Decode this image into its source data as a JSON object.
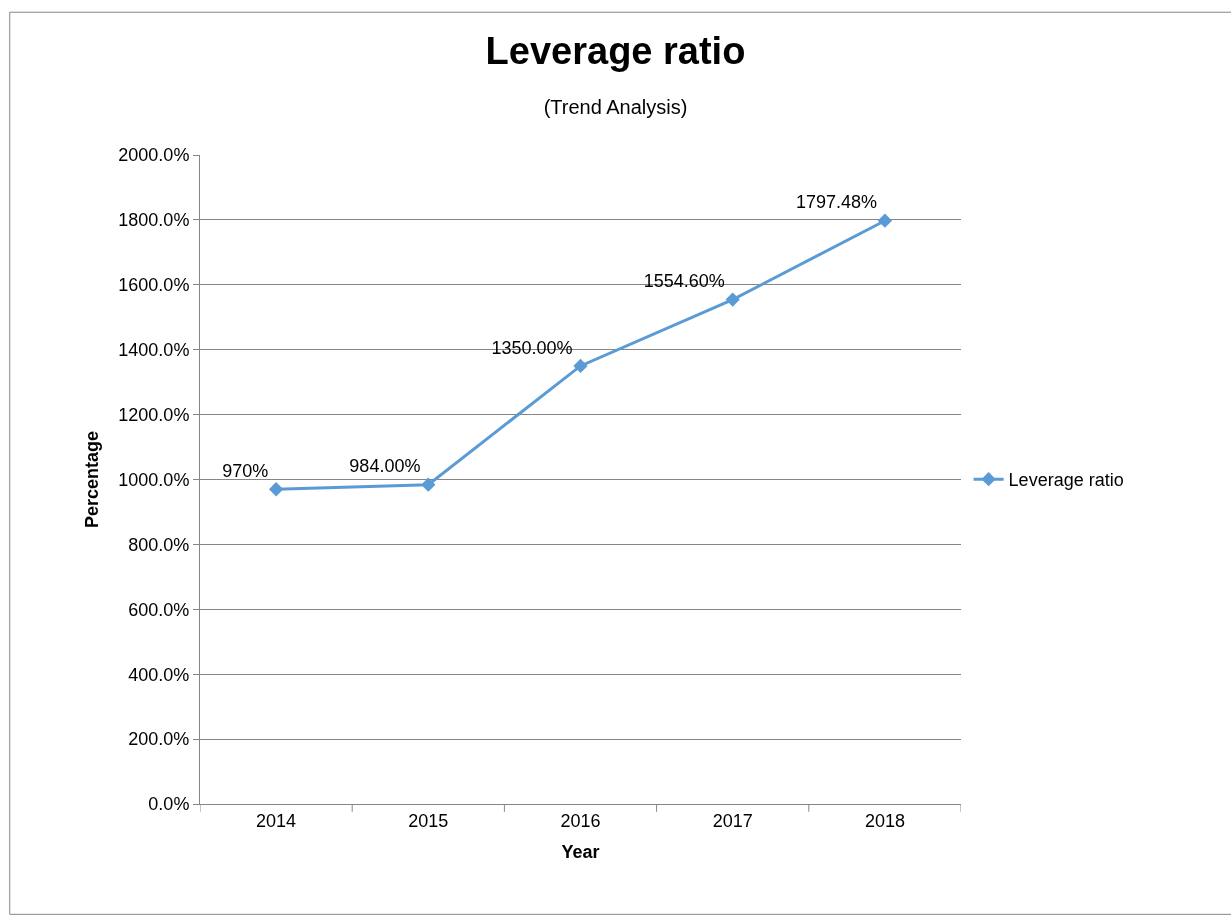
{
  "chart_data": {
    "type": "line",
    "title": "Leverage ratio",
    "subtitle": "(Trend Analysis)",
    "xlabel": "Year",
    "ylabel": "Percentage",
    "categories": [
      "2014",
      "2015",
      "2016",
      "2017",
      "2018"
    ],
    "series": [
      {
        "name": "Leverage ratio",
        "color": "#5b9bd5",
        "values": [
          970,
          984,
          1350,
          1554.6,
          1797.48
        ],
        "value_labels": [
          "970%",
          "984.00%",
          "1350.00%",
          "1554.60%",
          "1797.48%"
        ]
      }
    ],
    "ylim": [
      0,
      2000
    ],
    "yticks": [
      {
        "value": 0,
        "label": "0.0%"
      },
      {
        "value": 200,
        "label": "200.0%"
      },
      {
        "value": 400,
        "label": "400.0%"
      },
      {
        "value": 600,
        "label": "600.0%"
      },
      {
        "value": 800,
        "label": "800.0%"
      },
      {
        "value": 1000,
        "label": "1000.0%"
      },
      {
        "value": 1200,
        "label": "1200.0%"
      },
      {
        "value": 1400,
        "label": "1400.0%"
      },
      {
        "value": 1600,
        "label": "1600.0%"
      },
      {
        "value": 1800,
        "label": "1800.0%"
      },
      {
        "value": 2000,
        "label": "2000.0%"
      }
    ],
    "grid": "y",
    "legend": "right",
    "marker": "diamond",
    "line_style": "solid"
  }
}
